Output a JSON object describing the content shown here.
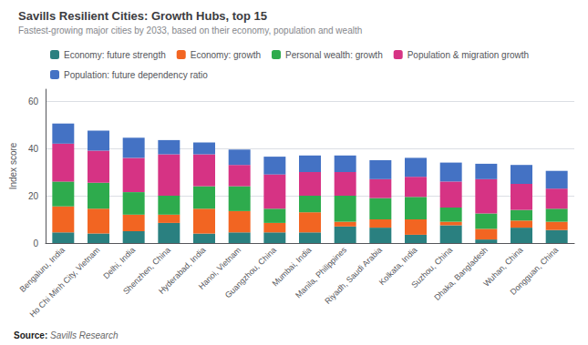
{
  "chart_data": {
    "type": "bar",
    "stacked": true,
    "title": "Savills Resilient Cities: Growth Hubs, top 15",
    "subtitle": "Fastest-growing major cities by 2033, based on their economy, population and wealth",
    "annotations": [
      "Source:",
      "Savills Research"
    ],
    "ylabel": "Index score",
    "categories": [
      "Bengaluru, India",
      "Ho Chi Minh City, Vietnam",
      "Delhi, India",
      "Shenzhen, China",
      "Hyderabad, India",
      "Hanoi, Vietnam",
      "Guangzhou, China",
      "Mumbai, India",
      "Manila, Philippines",
      "Riyadh, Saudi Arabia",
      "Kolkata, India",
      "Suzhou, China",
      "Dhaka, Bangladesh",
      "Wuhan, China",
      "Dongguan, China"
    ],
    "series": [
      {
        "name": "Economy: future strength",
        "color": "#2a8080",
        "values": [
          4.5,
          4.0,
          5.0,
          8.5,
          4.0,
          4.5,
          4.5,
          4.5,
          7.0,
          6.5,
          3.5,
          7.5,
          1.5,
          6.5,
          5.5
        ]
      },
      {
        "name": "Economy: growth",
        "color": "#f26522",
        "values": [
          11.0,
          10.5,
          7.0,
          3.5,
          10.5,
          9.0,
          4.0,
          8.5,
          2.0,
          3.5,
          6.5,
          1.5,
          4.5,
          3.0,
          3.5
        ]
      },
      {
        "name": "Personal wealth: growth",
        "color": "#2eab4d",
        "values": [
          10.5,
          11.0,
          9.5,
          8.0,
          9.5,
          10.5,
          6.0,
          7.0,
          11.0,
          9.0,
          9.5,
          6.0,
          6.5,
          4.5,
          5.5
        ]
      },
      {
        "name": "Population & migration growth",
        "color": "#d63384",
        "values": [
          16.0,
          13.5,
          14.5,
          17.5,
          13.5,
          9.0,
          14.5,
          10.0,
          10.0,
          8.0,
          8.5,
          11.0,
          14.5,
          11.0,
          8.5
        ]
      },
      {
        "name": "Population: future dependency ratio",
        "color": "#4472c4",
        "values": [
          8.5,
          8.5,
          8.5,
          6.0,
          5.0,
          6.5,
          7.5,
          7.0,
          7.0,
          8.0,
          8.0,
          8.0,
          6.5,
          8.0,
          7.5
        ]
      }
    ],
    "ylim": [
      0,
      65
    ],
    "yticks": [
      0,
      20,
      40,
      60
    ],
    "grid": true,
    "legend": "upper left"
  }
}
